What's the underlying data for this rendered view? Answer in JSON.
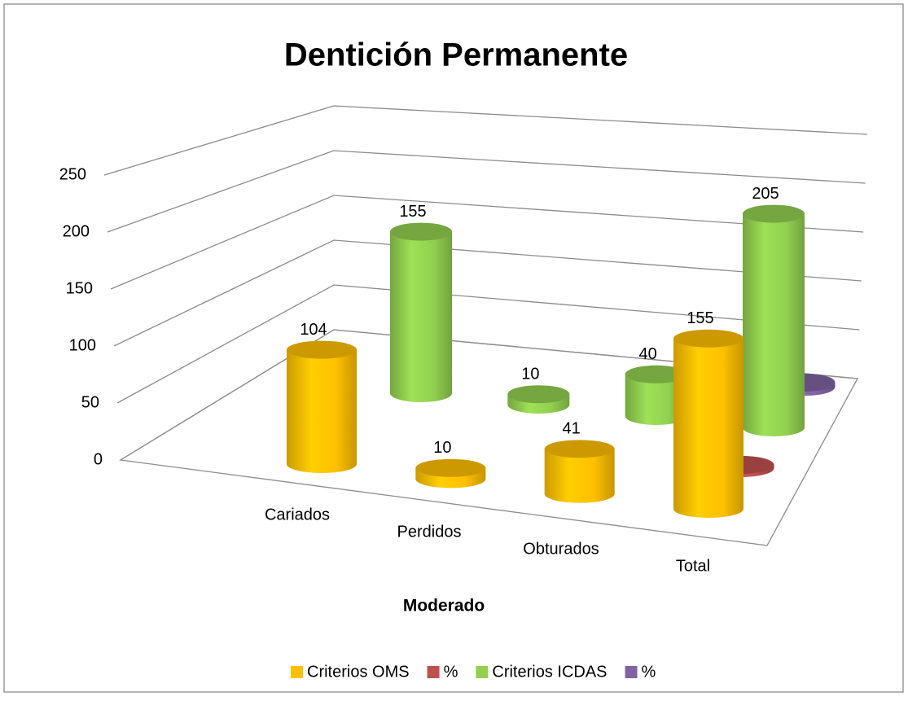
{
  "chart_data": {
    "type": "bar3d",
    "title": "Dentición Permanente",
    "x_label": "Moderado",
    "categories": [
      "Cariados",
      "Perdidos",
      "Obturados",
      "Total"
    ],
    "series": [
      {
        "name": "Criterios OMS",
        "color": "#ffc000",
        "values": [
          104,
          10,
          41,
          155
        ]
      },
      {
        "name": "%",
        "color": "#c0504d",
        "values": [
          null,
          null,
          null,
          3.1
        ]
      },
      {
        "name": "Criterios ICDAS",
        "color": "#92d050",
        "values": [
          155,
          10,
          40,
          205
        ]
      },
      {
        "name": "%",
        "color": "#8064a2",
        "values": [
          null,
          null,
          null,
          4.1
        ]
      }
    ],
    "ylim": [
      0,
      250
    ],
    "yticks": [
      0,
      50,
      100,
      150,
      200,
      250
    ],
    "grid": true,
    "legend": "bottom"
  }
}
